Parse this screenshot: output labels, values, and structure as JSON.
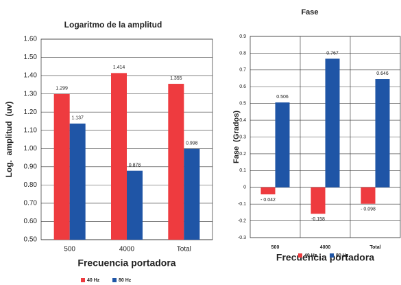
{
  "chart_data": [
    {
      "type": "bar",
      "title": "Logaritmo de la amplitud",
      "x_label": "Frecuencia portadora",
      "y_label": "Log.  amplitud  (uv)",
      "categories": [
        "500",
        "4000",
        "Total"
      ],
      "series": [
        {
          "name": "40 Hz",
          "color": "#ee3b3f",
          "values": [
            1.299,
            1.414,
            1.355
          ]
        },
        {
          "name": "80 Hz",
          "color": "#1f55a6",
          "values": [
            1.137,
            0.878,
            0.998
          ]
        }
      ],
      "ylim": [
        0.5,
        1.6
      ],
      "yticks": [
        {
          "value": 0.5,
          "label": "0.50"
        },
        {
          "value": 0.6,
          "label": "0.60"
        },
        {
          "value": 0.7,
          "label": "0.70"
        },
        {
          "value": 0.8,
          "label": "0.80"
        },
        {
          "value": 0.9,
          "label": "0.90"
        },
        {
          "value": 1.0,
          "label": "1.00"
        },
        {
          "value": 1.1,
          "label": "1.10"
        },
        {
          "value": 1.2,
          "label": "1.20"
        },
        {
          "value": 1.3,
          "label": "1.30"
        },
        {
          "value": 1.4,
          "label": "1.40"
        },
        {
          "value": 1.5,
          "label": "1.50"
        },
        {
          "value": 1.6,
          "label": "1.60"
        }
      ],
      "grid": true,
      "vgrid": false
    },
    {
      "type": "bar",
      "title": "Fase",
      "x_label": "Frecuencia portadora",
      "y_label": "Fase  (Grados)",
      "categories": [
        "500",
        "4000",
        "Total"
      ],
      "series": [
        {
          "name": "40 Hz",
          "color": "#ee3b3f",
          "values": [
            -0.042,
            -0.158,
            -0.098
          ],
          "value_labels": [
            "- 0.042",
            "-0.158",
            "- 0.098"
          ]
        },
        {
          "name": "80 Hz",
          "color": "#1f55a6",
          "values": [
            0.506,
            0.767,
            0.646
          ]
        }
      ],
      "ylim": [
        -0.3,
        0.9
      ],
      "yticks": [
        -0.3,
        -0.2,
        -0.1,
        0,
        0.1,
        0.2,
        0.3,
        0.4,
        0.5,
        0.6,
        0.7,
        0.8,
        0.9
      ],
      "grid": true,
      "vgrid": true
    }
  ]
}
